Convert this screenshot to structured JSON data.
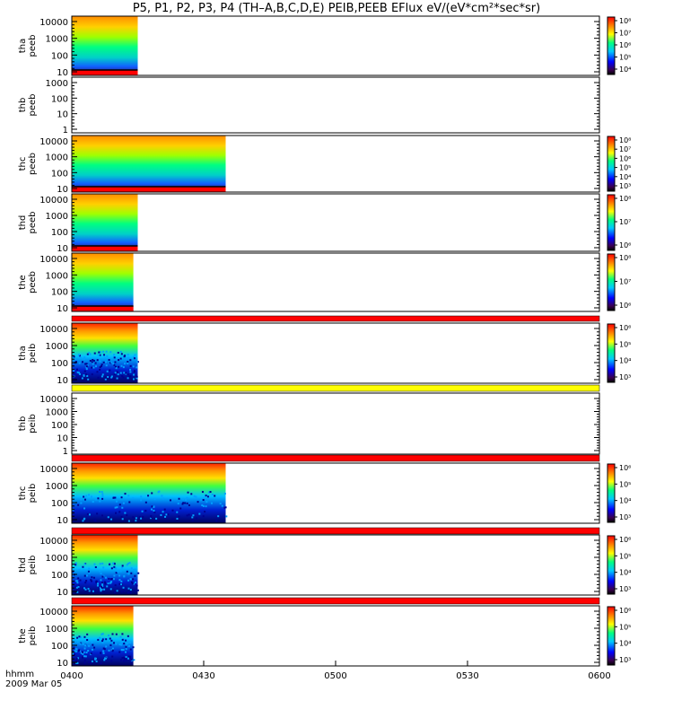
{
  "chart_data": {
    "type": "heatmap",
    "title": "P5, P1, P2, P3, P4 (TH–A,B,C,D,E) PEIB,PEEB EFlux eV/(eV*cm²*sec*sr)",
    "x_axis": {
      "label": "hhmm",
      "date_label": "2009 Mar 05",
      "range": [
        "04:00",
        "06:00"
      ],
      "ticks": [
        "0400",
        "0430",
        "0500",
        "0530",
        "0600"
      ]
    },
    "panels": [
      {
        "name": "tha peeb",
        "probe": "tha",
        "instrument": "peeb",
        "data_end": "04:15",
        "yticks": [
          "10000",
          "1000",
          "100",
          "10"
        ],
        "colorbar_ticks": [
          "10⁸",
          "10⁷",
          "10⁶",
          "10⁵",
          "10⁴"
        ]
      },
      {
        "name": "thb peeb",
        "probe": "thb",
        "instrument": "peeb",
        "data_end": null,
        "yticks": [
          "1000",
          "100",
          "10",
          "1"
        ],
        "colorbar_ticks": []
      },
      {
        "name": "thc peeb",
        "probe": "thc",
        "instrument": "peeb",
        "data_end": "04:35",
        "yticks": [
          "10000",
          "1000",
          "100",
          "10"
        ],
        "colorbar_ticks": [
          "10⁸",
          "10⁷",
          "10⁶",
          "10⁵",
          "10⁴",
          "10³"
        ]
      },
      {
        "name": "thd peeb",
        "probe": "thd",
        "instrument": "peeb",
        "data_end": "04:15",
        "yticks": [
          "10000",
          "1000",
          "100",
          "10"
        ],
        "colorbar_ticks": [
          "10⁸",
          "10⁷",
          "10⁶"
        ]
      },
      {
        "name": "the peeb",
        "probe": "the",
        "instrument": "peeb",
        "data_end": "04:14",
        "yticks": [
          "10000",
          "1000",
          "100",
          "10"
        ],
        "colorbar_ticks": [
          "10⁸",
          "10⁷",
          "10⁶"
        ]
      },
      {
        "name": "tha peib",
        "probe": "tha",
        "instrument": "peib",
        "data_end": "04:15",
        "yticks": [
          "10000",
          "1000",
          "100",
          "10"
        ],
        "colorbar_ticks": [
          "10⁶",
          "10⁵",
          "10⁴",
          "10³"
        ]
      },
      {
        "name": "thb peib",
        "probe": "thb",
        "instrument": "peib",
        "data_end": null,
        "yticks": [
          "10000",
          "1000",
          "100",
          "10",
          "1"
        ],
        "colorbar_ticks": []
      },
      {
        "name": "thc peib",
        "probe": "thc",
        "instrument": "peib",
        "data_end": "04:35",
        "yticks": [
          "10000",
          "1000",
          "100",
          "10"
        ],
        "colorbar_ticks": [
          "10⁶",
          "10⁵",
          "10⁴",
          "10³"
        ]
      },
      {
        "name": "thd peib",
        "probe": "thd",
        "instrument": "peib",
        "data_end": "04:15",
        "yticks": [
          "10000",
          "1000",
          "100",
          "10"
        ],
        "colorbar_ticks": [
          "10⁶",
          "10⁵",
          "10⁴",
          "10³"
        ]
      },
      {
        "name": "the peib",
        "probe": "the",
        "instrument": "peib",
        "data_end": "04:14",
        "yticks": [
          "10000",
          "1000",
          "100",
          "10"
        ],
        "colorbar_ticks": [
          "10⁶",
          "10⁵",
          "10⁴",
          "10³"
        ]
      }
    ],
    "colors": {
      "scale": [
        "#3a0050",
        "#0000ff",
        "#00c8ff",
        "#00ff80",
        "#ffff00",
        "#ff8000",
        "#ff0000"
      ],
      "flag_red": "#ff0000",
      "flag_yellow": "#ffff00"
    }
  }
}
